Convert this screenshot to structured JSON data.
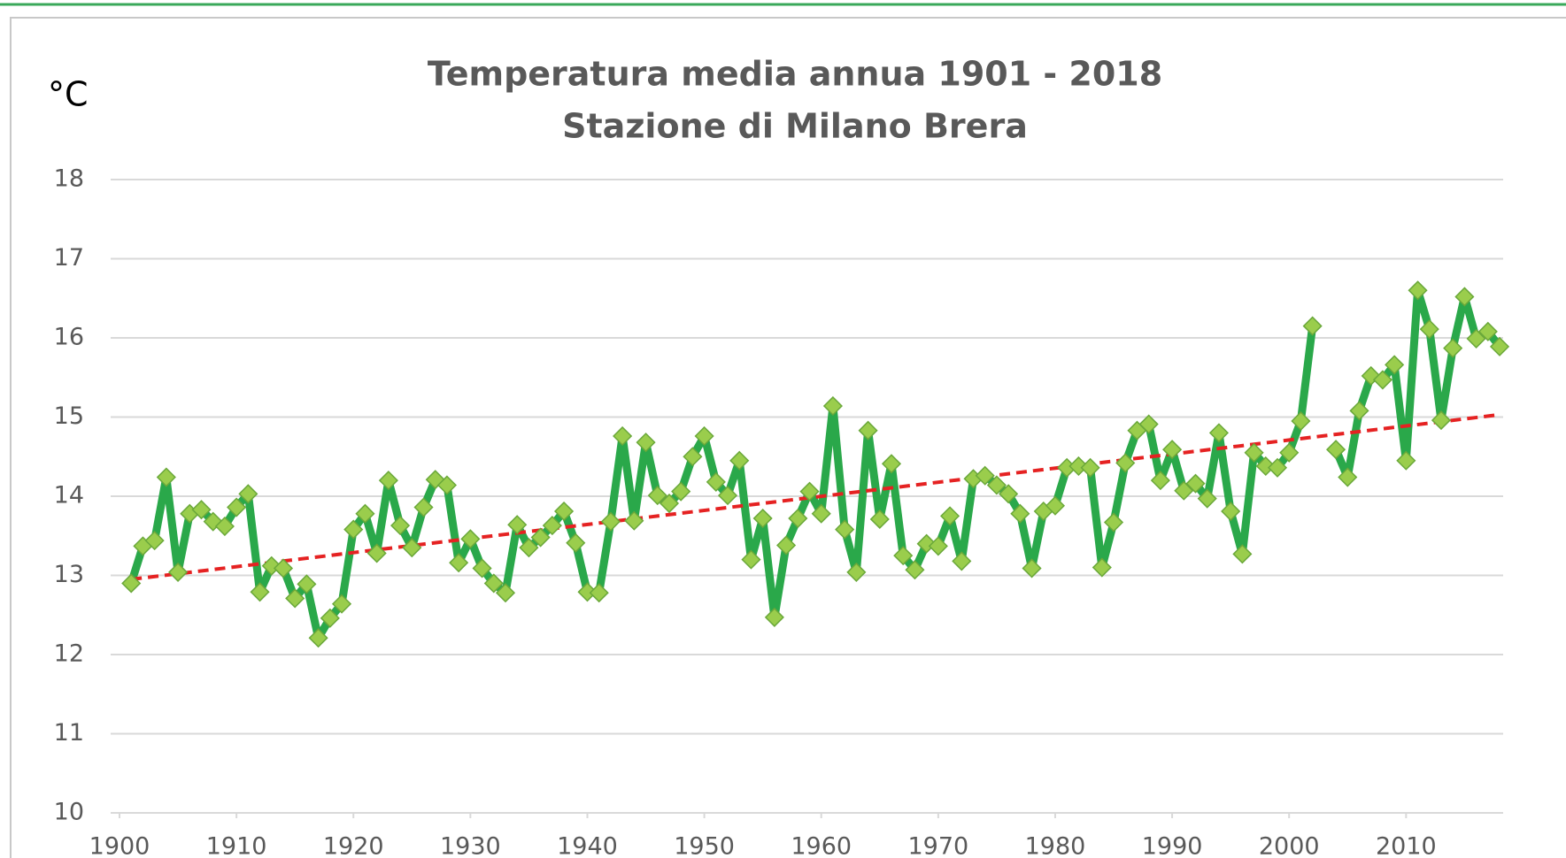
{
  "chart_data": {
    "type": "line",
    "title": "Temperatura media annua 1901 - 2018",
    "subtitle": "Stazione di Milano Brera",
    "y_label": "°C",
    "x": [
      1901,
      1902,
      1903,
      1904,
      1905,
      1906,
      1907,
      1908,
      1909,
      1910,
      1911,
      1912,
      1913,
      1914,
      1915,
      1916,
      1917,
      1918,
      1919,
      1920,
      1921,
      1922,
      1923,
      1924,
      1925,
      1926,
      1927,
      1928,
      1929,
      1930,
      1931,
      1932,
      1933,
      1934,
      1935,
      1936,
      1937,
      1938,
      1939,
      1940,
      1941,
      1942,
      1943,
      1944,
      1945,
      1946,
      1947,
      1948,
      1949,
      1950,
      1951,
      1952,
      1953,
      1954,
      1955,
      1956,
      1957,
      1958,
      1959,
      1960,
      1961,
      1962,
      1963,
      1964,
      1965,
      1966,
      1967,
      1968,
      1969,
      1970,
      1971,
      1972,
      1973,
      1974,
      1975,
      1976,
      1977,
      1978,
      1979,
      1980,
      1981,
      1982,
      1983,
      1984,
      1985,
      1986,
      1987,
      1988,
      1989,
      1990,
      1991,
      1992,
      1993,
      1994,
      1995,
      1996,
      1997,
      1998,
      1999,
      2000,
      2001,
      2002,
      2003,
      2004,
      2005,
      2006,
      2007,
      2008,
      2009,
      2010,
      2011,
      2012,
      2013,
      2014,
      2015,
      2016,
      2017,
      2018
    ],
    "series": [
      {
        "color": "#2aa84a",
        "marker_color": "#9acd4c",
        "values": [
          12.9,
          13.37,
          13.44,
          14.24,
          13.04,
          13.78,
          13.83,
          13.68,
          13.62,
          13.86,
          14.03,
          12.79,
          13.12,
          13.09,
          12.71,
          12.89,
          12.21,
          12.46,
          12.64,
          13.58,
          13.78,
          13.28,
          14.2,
          13.63,
          13.35,
          13.86,
          14.21,
          14.14,
          13.16,
          13.46,
          13.09,
          12.9,
          12.78,
          13.64,
          13.35,
          13.48,
          13.63,
          13.81,
          13.41,
          12.79,
          12.78,
          13.68,
          14.76,
          13.69,
          14.68,
          14.01,
          13.91,
          14.06,
          14.5,
          14.76,
          14.18,
          14.01,
          14.45,
          13.2,
          13.72,
          12.47,
          13.38,
          13.72,
          14.06,
          13.78,
          15.14,
          13.58,
          13.04,
          14.83,
          13.71,
          14.41,
          13.25,
          13.07,
          13.4,
          13.37,
          13.75,
          13.18,
          14.22,
          14.26,
          14.14,
          14.03,
          13.78,
          13.09,
          13.81,
          13.88,
          14.36,
          14.38,
          14.36,
          13.1,
          13.67,
          14.42,
          14.83,
          14.91,
          14.2,
          14.59,
          14.07,
          14.16,
          13.97,
          14.8,
          13.81,
          13.27,
          14.55,
          14.38,
          14.36,
          14.55,
          14.95,
          16.15,
          null,
          14.59,
          14.24,
          15.08,
          15.52,
          15.47,
          15.66,
          14.45,
          16.6,
          16.11,
          14.96,
          15.87,
          16.52,
          15.99,
          16.08,
          15.89
        ]
      }
    ],
    "trend": {
      "x": [
        1901,
        2018
      ],
      "values": [
        12.95,
        15.03
      ],
      "color": "#e52222",
      "dashed": true
    },
    "xlim": [
      1900,
      2018.3
    ],
    "xticks": [
      1900,
      1910,
      1920,
      1930,
      1940,
      1950,
      1960,
      1970,
      1980,
      1990,
      2000,
      2010
    ],
    "ylim": [
      10,
      18
    ],
    "yticks": [
      10,
      11,
      12,
      13,
      14,
      15,
      16,
      17,
      18
    ],
    "grid": true
  }
}
